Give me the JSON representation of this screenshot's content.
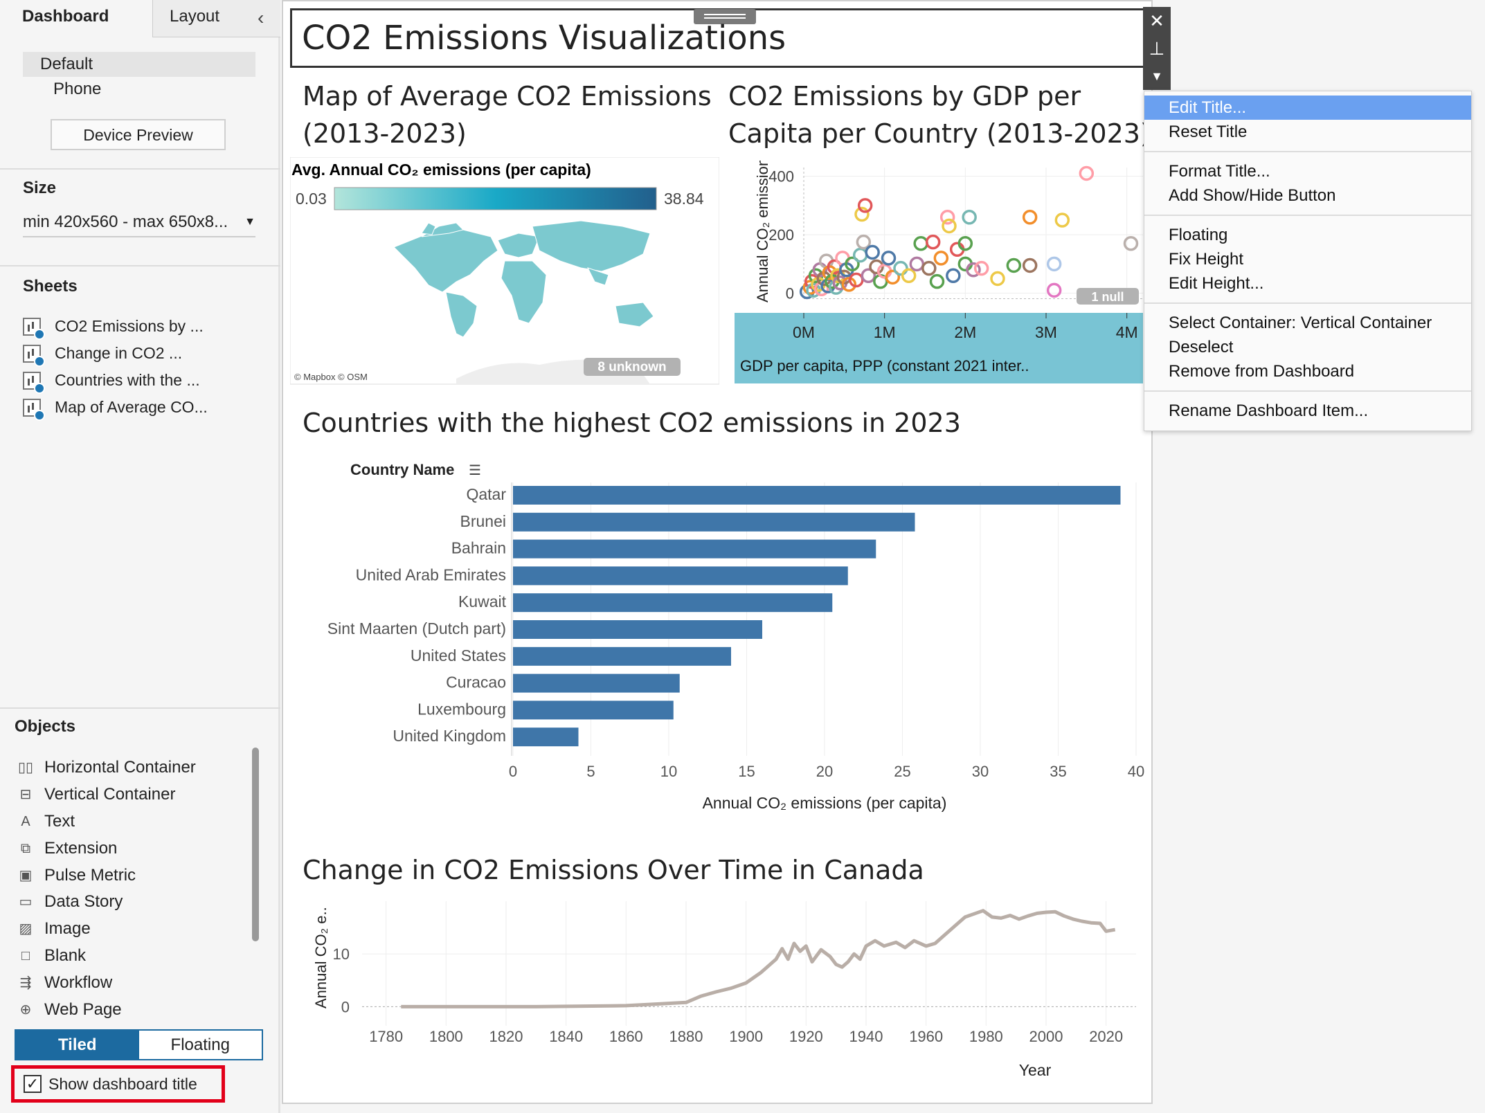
{
  "left_panel": {
    "tabs": {
      "dashboard": "Dashboard",
      "layout": "Layout"
    },
    "device": {
      "default": "Default",
      "phone": "Phone",
      "preview_button": "Device Preview"
    },
    "size": {
      "title": "Size",
      "value": "min 420x560 - max 650x8..."
    },
    "sheets": {
      "title": "Sheets",
      "items": [
        "CO2 Emissions by ...",
        "Change in CO2 ...",
        "Countries with the ...",
        "Map of Average CO..."
      ]
    },
    "objects": {
      "title": "Objects",
      "items": [
        {
          "label": "Horizontal Container",
          "icon": "horizontal-container-icon"
        },
        {
          "label": "Vertical Container",
          "icon": "vertical-container-icon"
        },
        {
          "label": "Text",
          "icon": "text-icon"
        },
        {
          "label": "Extension",
          "icon": "extension-icon"
        },
        {
          "label": "Pulse Metric",
          "icon": "pulse-metric-icon"
        },
        {
          "label": "Data Story",
          "icon": "data-story-icon"
        },
        {
          "label": "Image",
          "icon": "image-icon"
        },
        {
          "label": "Blank",
          "icon": "blank-icon"
        },
        {
          "label": "Workflow",
          "icon": "workflow-icon"
        },
        {
          "label": "Web Page",
          "icon": "web-page-icon"
        }
      ]
    },
    "toggle": {
      "tiled": "Tiled",
      "floating": "Floating"
    },
    "show_title": "Show dashboard title"
  },
  "dashboard": {
    "title": "CO2 Emissions Visualizations",
    "map": {
      "title_line1": "Map of Average CO2 Emissions",
      "title_line2": "(2013-2023)",
      "legend_title": "Avg. Annual CO₂ emissions (per capita)",
      "legend_min": "0.03",
      "legend_max": "38.84",
      "unknown": "8 unknown",
      "attribution": "© Mapbox © OSM"
    },
    "scatter": {
      "title_line1": "CO2 Emissions by GDP per",
      "title_line2": "Capita per Country (2013-2023)",
      "null_badge": "1 null"
    },
    "bar": {
      "title": "Countries with the highest CO2 emissions in 2023"
    },
    "line": {
      "title": "Change in CO2 Emissions Over Time in Canada"
    }
  },
  "context_menu": {
    "items": [
      "Edit Title...",
      "Reset Title",
      "Format Title...",
      "Add Show/Hide Button",
      "Floating",
      "Fix Height",
      "Edit Height...",
      "Select Container: Vertical Container",
      "Deselect",
      "Remove from Dashboard",
      "Rename Dashboard Item..."
    ]
  },
  "chart_data": [
    {
      "type": "scatter",
      "title": "CO2 Emissions by GDP per Capita per Country (2013-2023)",
      "xlabel": "GDP per capita, PPP (constant 2021 inter..",
      "ylabel": "Annual CO₂ emissions (per ca..",
      "xlim": [
        0,
        4200000
      ],
      "ylim": [
        -20,
        430
      ],
      "xticks": [
        "0M",
        "1M",
        "2M",
        "3M",
        "4M"
      ],
      "yticks": [
        "0",
        "200",
        "400"
      ],
      "points": [
        [
          40000,
          5,
          "#4e79a7"
        ],
        [
          80000,
          20,
          "#f28e2b"
        ],
        [
          100000,
          40,
          "#e15759"
        ],
        [
          120000,
          10,
          "#76b7b2"
        ],
        [
          150000,
          60,
          "#59a14f"
        ],
        [
          180000,
          30,
          "#edc948"
        ],
        [
          200000,
          80,
          "#b07aa1"
        ],
        [
          220000,
          15,
          "#ff9da7"
        ],
        [
          250000,
          50,
          "#9c755f"
        ],
        [
          280000,
          110,
          "#bab0ac"
        ],
        [
          300000,
          25,
          "#4e79a7"
        ],
        [
          320000,
          70,
          "#f28e2b"
        ],
        [
          350000,
          40,
          "#59a14f"
        ],
        [
          380000,
          90,
          "#e15759"
        ],
        [
          400000,
          20,
          "#76b7b2"
        ],
        [
          420000,
          60,
          "#edc948"
        ],
        [
          450000,
          35,
          "#b07aa1"
        ],
        [
          480000,
          120,
          "#ff9da7"
        ],
        [
          500000,
          55,
          "#9c755f"
        ],
        [
          530000,
          80,
          "#4e79a7"
        ],
        [
          560000,
          30,
          "#f28e2b"
        ],
        [
          600000,
          100,
          "#59a14f"
        ],
        [
          650000,
          45,
          "#e15759"
        ],
        [
          700000,
          130,
          "#76b7b2"
        ],
        [
          720000,
          270,
          "#edc948"
        ],
        [
          740000,
          175,
          "#bab0ac"
        ],
        [
          760000,
          300,
          "#e15759"
        ],
        [
          800000,
          60,
          "#b07aa1"
        ],
        [
          850000,
          140,
          "#4e79a7"
        ],
        [
          900000,
          90,
          "#9c755f"
        ],
        [
          950000,
          40,
          "#59a14f"
        ],
        [
          1000000,
          75,
          "#ff9da7"
        ],
        [
          1050000,
          120,
          "#4e79a7"
        ],
        [
          1100000,
          55,
          "#f28e2b"
        ],
        [
          1200000,
          85,
          "#76b7b2"
        ],
        [
          1300000,
          60,
          "#edc948"
        ],
        [
          1400000,
          100,
          "#b07aa1"
        ],
        [
          1450000,
          170,
          "#59a14f"
        ],
        [
          1550000,
          85,
          "#9c755f"
        ],
        [
          1600000,
          175,
          "#e15759"
        ],
        [
          1650000,
          40,
          "#59a14f"
        ],
        [
          1700000,
          120,
          "#f28e2b"
        ],
        [
          1780000,
          260,
          "#ff9da7"
        ],
        [
          1800000,
          230,
          "#edc948"
        ],
        [
          1850000,
          60,
          "#4e79a7"
        ],
        [
          1900000,
          150,
          "#e15759"
        ],
        [
          2000000,
          100,
          "#59a14f"
        ],
        [
          2050000,
          260,
          "#76b7b2"
        ],
        [
          2000000,
          170,
          "#59a14f"
        ],
        [
          2100000,
          80,
          "#b07aa1"
        ],
        [
          2200000,
          85,
          "#ff9da7"
        ],
        [
          2400000,
          50,
          "#edc948"
        ],
        [
          2600000,
          95,
          "#59a14f"
        ],
        [
          2800000,
          95,
          "#9c755f"
        ],
        [
          2800000,
          260,
          "#f28e2b"
        ],
        [
          3100000,
          10,
          "#e377c2"
        ],
        [
          3100000,
          100,
          "#aec7e8"
        ],
        [
          3200000,
          250,
          "#edc948"
        ],
        [
          3500000,
          410,
          "#ff9da7"
        ],
        [
          4050000,
          170,
          "#bab0ac"
        ]
      ]
    },
    {
      "type": "bar",
      "title": "Countries with the highest CO2 emissions in 2023",
      "header": "Country Name",
      "xlabel": "Annual CO₂ emissions (per capita)",
      "xlim": [
        0,
        40
      ],
      "xticks": [
        0,
        5,
        10,
        15,
        20,
        25,
        30,
        35,
        40
      ],
      "categories": [
        "Qatar",
        "Brunei",
        "Bahrain",
        "United Arab Emirates",
        "Kuwait",
        "Sint Maarten (Dutch part)",
        "United States",
        "Curacao",
        "Luxembourg",
        "United Kingdom"
      ],
      "values": [
        39.0,
        25.8,
        23.3,
        21.5,
        20.5,
        16.0,
        14.0,
        10.7,
        10.3,
        4.2
      ],
      "color": "#3f76a9"
    },
    {
      "type": "line",
      "title": "Change in CO2 Emissions Over Time in Canada",
      "xlabel": "Year",
      "ylabel": "Annual CO₂ e..",
      "xlim": [
        1772,
        2030
      ],
      "ylim": [
        -1,
        20
      ],
      "xticks": [
        1780,
        1800,
        1820,
        1840,
        1860,
        1880,
        1900,
        1920,
        1940,
        1960,
        1980,
        2000,
        2020
      ],
      "yticks": [
        0,
        10
      ],
      "color": "#b9aea7",
      "x": [
        1785,
        1800,
        1830,
        1860,
        1870,
        1880,
        1885,
        1890,
        1895,
        1900,
        1905,
        1910,
        1912,
        1914,
        1916,
        1918,
        1920,
        1922,
        1925,
        1928,
        1930,
        1932,
        1934,
        1936,
        1938,
        1940,
        1943,
        1946,
        1950,
        1953,
        1956,
        1960,
        1963,
        1966,
        1970,
        1973,
        1976,
        1979,
        1982,
        1985,
        1988,
        1991,
        1994,
        1997,
        2000,
        2003,
        2006,
        2009,
        2012,
        2015,
        2018,
        2020,
        2023
      ],
      "y": [
        0,
        0,
        0,
        0.2,
        0.5,
        0.8,
        2.0,
        2.8,
        3.5,
        4.5,
        6.5,
        9.0,
        11.0,
        9.0,
        12.0,
        10.5,
        11.5,
        8.5,
        10.8,
        9.5,
        8.0,
        7.5,
        8.5,
        10.0,
        9.0,
        11.5,
        12.5,
        11.5,
        12.2,
        11.2,
        12.5,
        11.5,
        12.0,
        13.5,
        15.5,
        17.0,
        17.6,
        18.2,
        17.0,
        16.8,
        17.3,
        16.6,
        17.2,
        17.7,
        17.9,
        18.0,
        17.2,
        16.6,
        16.2,
        15.9,
        15.8,
        14.3,
        14.6
      ]
    }
  ]
}
